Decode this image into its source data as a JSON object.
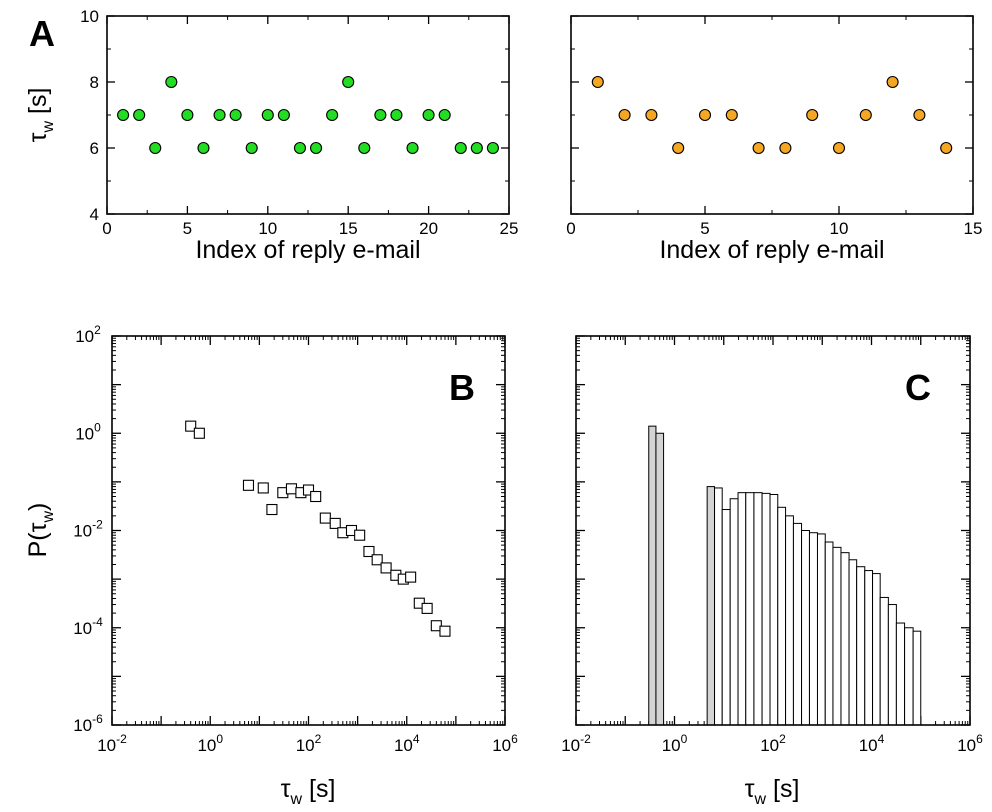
{
  "colors": {
    "green": "#22dd22",
    "orange": "#f5a623",
    "bar_gray": "#d3d3d3",
    "bar_white": "#ffffff"
  },
  "chart_data": [
    {
      "panel": "A-left",
      "type": "scatter",
      "letter": "A",
      "xlabel": "Index of reply e-mail",
      "ylabel": "τ",
      "ylabel_sub": "w",
      "ylabel_unit": "[s]",
      "xlim": [
        0,
        25
      ],
      "ylim": [
        4,
        10
      ],
      "xticks": [
        0,
        5,
        10,
        15,
        20,
        25
      ],
      "yticks": [
        4,
        6,
        8,
        10
      ],
      "marker_color": "#22dd22",
      "x": [
        1,
        2,
        3,
        4,
        5,
        6,
        7,
        8,
        9,
        10,
        11,
        12,
        13,
        14,
        15,
        16,
        17,
        18,
        19,
        20,
        21,
        22,
        23,
        24
      ],
      "y": [
        7,
        7,
        6,
        8,
        7,
        6,
        7,
        7,
        6,
        7,
        7,
        6,
        6,
        7,
        8,
        6,
        7,
        7,
        6,
        7,
        7,
        6,
        6,
        6
      ]
    },
    {
      "panel": "A-right",
      "type": "scatter",
      "xlabel": "Index of reply e-mail",
      "xlim": [
        0,
        15
      ],
      "ylim": [
        4,
        10
      ],
      "xticks": [
        0,
        5,
        10,
        15
      ],
      "marker_color": "#f5a623",
      "x": [
        1,
        2,
        3,
        4,
        5,
        6,
        7,
        8,
        9,
        10,
        11,
        12,
        13,
        14
      ],
      "y": [
        8,
        7,
        7,
        6,
        7,
        7,
        6,
        6,
        7,
        6,
        7,
        8,
        7,
        6
      ]
    },
    {
      "panel": "B",
      "type": "scatter",
      "letter": "B",
      "xlabel": "τ",
      "xlabel_sub": "w",
      "xlabel_unit": "[s]",
      "ylabel": "P(τ",
      "ylabel_sub": "w",
      "ylabel_close": ")",
      "xscale": "log",
      "yscale": "log",
      "xlim_exp": [
        -2,
        6
      ],
      "ylim_exp": [
        -6,
        2
      ],
      "xtick_exps": [
        -2,
        0,
        2,
        4,
        6
      ],
      "ytick_exps": [
        -6,
        -4,
        -2,
        0,
        2
      ],
      "tick_base": "10",
      "points": [
        [
          0.4,
          1.4
        ],
        [
          0.6,
          1.0
        ],
        [
          6,
          0.085
        ],
        [
          12,
          0.075
        ],
        [
          18,
          0.027
        ],
        [
          30,
          0.06
        ],
        [
          45,
          0.072
        ],
        [
          70,
          0.06
        ],
        [
          100,
          0.068
        ],
        [
          140,
          0.05
        ],
        [
          220,
          0.018
        ],
        [
          350,
          0.014
        ],
        [
          500,
          0.009
        ],
        [
          750,
          0.01
        ],
        [
          1100,
          0.008
        ],
        [
          1700,
          0.0037
        ],
        [
          2500,
          0.0025
        ],
        [
          3800,
          0.0017
        ],
        [
          6000,
          0.0012
        ],
        [
          8500,
          0.001
        ],
        [
          12000,
          0.0011
        ],
        [
          18000,
          0.00032
        ],
        [
          26000,
          0.00025
        ],
        [
          40000,
          0.00011
        ],
        [
          60000,
          8.5e-05
        ]
      ]
    },
    {
      "panel": "C",
      "type": "bar",
      "letter": "C",
      "xlabel": "τ",
      "xlabel_sub": "w",
      "xlabel_unit": "[s]",
      "xscale": "log",
      "yscale": "log",
      "xlim_exp": [
        -2,
        6
      ],
      "ylim_exp": [
        -6,
        2
      ],
      "xtick_exps": [
        -2,
        0,
        2,
        4,
        6
      ],
      "tick_base": "10",
      "bars": [
        {
          "x0": 0.3,
          "x1": 0.42,
          "y": 1.4,
          "fill": "gray"
        },
        {
          "x0": 0.42,
          "x1": 0.6,
          "y": 1.0,
          "fill": "gray"
        },
        {
          "x0": 4.6,
          "x1": 6.5,
          "y": 0.08,
          "fill": "gray"
        },
        {
          "x0": 6.5,
          "x1": 9.3,
          "y": 0.075,
          "fill": "white"
        },
        {
          "x0": 9.3,
          "x1": 13.5,
          "y": 0.027,
          "fill": "white"
        },
        {
          "x0": 13.5,
          "x1": 19.5,
          "y": 0.045,
          "fill": "white"
        },
        {
          "x0": 19.5,
          "x1": 28,
          "y": 0.06,
          "fill": "white"
        },
        {
          "x0": 28,
          "x1": 41,
          "y": 0.06,
          "fill": "white"
        },
        {
          "x0": 41,
          "x1": 60,
          "y": 0.06,
          "fill": "white"
        },
        {
          "x0": 60,
          "x1": 87,
          "y": 0.058,
          "fill": "white"
        },
        {
          "x0": 87,
          "x1": 125,
          "y": 0.055,
          "fill": "white"
        },
        {
          "x0": 125,
          "x1": 180,
          "y": 0.03,
          "fill": "white"
        },
        {
          "x0": 180,
          "x1": 260,
          "y": 0.02,
          "fill": "white"
        },
        {
          "x0": 260,
          "x1": 380,
          "y": 0.014,
          "fill": "white"
        },
        {
          "x0": 380,
          "x1": 550,
          "y": 0.01,
          "fill": "white"
        },
        {
          "x0": 550,
          "x1": 800,
          "y": 0.009,
          "fill": "white"
        },
        {
          "x0": 800,
          "x1": 1150,
          "y": 0.0085,
          "fill": "white"
        },
        {
          "x0": 1150,
          "x1": 1650,
          "y": 0.0058,
          "fill": "white"
        },
        {
          "x0": 1650,
          "x1": 2400,
          "y": 0.0045,
          "fill": "white"
        },
        {
          "x0": 2400,
          "x1": 3500,
          "y": 0.0035,
          "fill": "white"
        },
        {
          "x0": 3500,
          "x1": 5000,
          "y": 0.0025,
          "fill": "white"
        },
        {
          "x0": 5000,
          "x1": 7300,
          "y": 0.0018,
          "fill": "white"
        },
        {
          "x0": 7300,
          "x1": 10500,
          "y": 0.0015,
          "fill": "white"
        },
        {
          "x0": 10500,
          "x1": 15000,
          "y": 0.0013,
          "fill": "white"
        },
        {
          "x0": 15000,
          "x1": 22000,
          "y": 0.00042,
          "fill": "white"
        },
        {
          "x0": 22000,
          "x1": 32000,
          "y": 0.0003,
          "fill": "white"
        },
        {
          "x0": 32000,
          "x1": 47000,
          "y": 0.000125,
          "fill": "white"
        },
        {
          "x0": 47000,
          "x1": 70000,
          "y": 0.0001,
          "fill": "white"
        },
        {
          "x0": 70000,
          "x1": 100000,
          "y": 8.5e-05,
          "fill": "white"
        }
      ]
    }
  ]
}
